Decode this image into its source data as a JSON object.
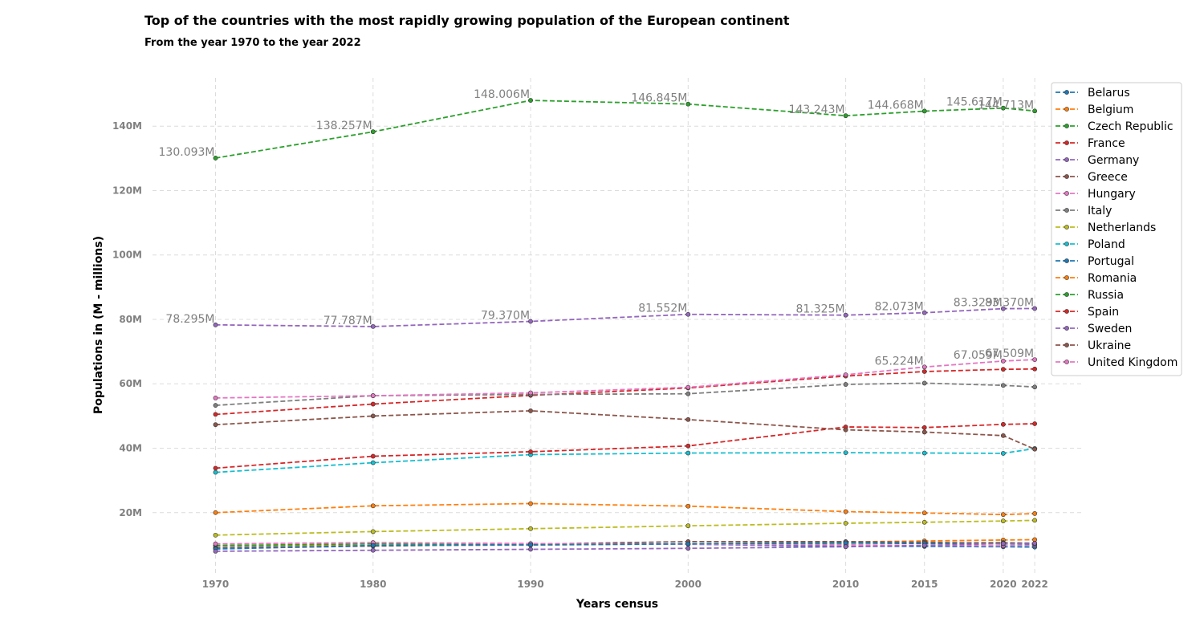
{
  "chart_data": {
    "type": "line",
    "title": "Top of the countries with the most rapidly growing population of the European continent",
    "subtitle": "From the year 1970 to the year 2022",
    "xlabel": "Years census",
    "ylabel": "Populations in (M - millions)",
    "categories": [
      "1970",
      "1980",
      "1990",
      "2000",
      "2010",
      "2015",
      "2020",
      "2022"
    ],
    "x": [
      1970,
      1980,
      1990,
      2000,
      2010,
      2015,
      2020,
      2022
    ],
    "xlim": [
      1966,
      2025
    ],
    "ylim": [
      1,
      155
    ],
    "y_ticks": [
      20,
      40,
      60,
      80,
      100,
      120,
      140
    ],
    "y_tick_labels": [
      "20M",
      "40M",
      "60M",
      "80M",
      "100M",
      "120M",
      "140M"
    ],
    "grid": true,
    "line_style": "dashed",
    "legend_position": "top-right",
    "series": [
      {
        "name": "Belarus",
        "color": "#1f77b4",
        "values": [
          9.1,
          9.7,
          10.2,
          10.2,
          9.5,
          9.5,
          9.4,
          9.3
        ]
      },
      {
        "name": "Belgium",
        "color": "#ff7f0e",
        "values": [
          9.7,
          9.8,
          9.9,
          10.3,
          10.9,
          11.2,
          11.5,
          11.6
        ]
      },
      {
        "name": "Czech Republic",
        "color": "#2ca02c",
        "values": [
          9.8,
          10.3,
          10.3,
          10.2,
          10.5,
          10.5,
          10.7,
          10.5
        ]
      },
      {
        "name": "France",
        "color": "#d62728",
        "values": [
          50.5,
          53.7,
          56.4,
          58.7,
          62.4,
          63.8,
          64.5,
          64.6
        ]
      },
      {
        "name": "Germany",
        "color": "#9467bd",
        "values": [
          78.295,
          77.787,
          79.37,
          81.552,
          81.325,
          82.073,
          83.329,
          83.37
        ]
      },
      {
        "name": "Greece",
        "color": "#8c564b",
        "values": [
          8.9,
          9.6,
          10.2,
          11.0,
          11.0,
          10.8,
          10.5,
          10.4
        ]
      },
      {
        "name": "Hungary",
        "color": "#e377c2",
        "values": [
          10.3,
          10.7,
          10.4,
          10.2,
          10.0,
          9.8,
          9.7,
          9.9
        ]
      },
      {
        "name": "Italy",
        "color": "#7f7f7f",
        "values": [
          53.3,
          56.3,
          56.7,
          56.9,
          59.8,
          60.2,
          59.5,
          59.0
        ]
      },
      {
        "name": "Netherlands",
        "color": "#bcbd22",
        "values": [
          13.0,
          14.1,
          15.0,
          15.9,
          16.7,
          17.0,
          17.4,
          17.6
        ]
      },
      {
        "name": "Poland",
        "color": "#17becf",
        "values": [
          32.5,
          35.5,
          38.0,
          38.5,
          38.6,
          38.5,
          38.4,
          39.9
        ]
      },
      {
        "name": "Portugal",
        "color": "#1f77b4",
        "values": [
          8.7,
          9.8,
          10.0,
          10.3,
          10.6,
          10.4,
          10.3,
          10.3
        ]
      },
      {
        "name": "Romania",
        "color": "#ff7f0e",
        "values": [
          20.0,
          22.1,
          22.8,
          22.0,
          20.3,
          19.9,
          19.4,
          19.7
        ]
      },
      {
        "name": "Russia",
        "color": "#2ca02c",
        "values": [
          130.093,
          138.257,
          148.006,
          146.845,
          143.243,
          144.668,
          145.617,
          144.713
        ]
      },
      {
        "name": "Spain",
        "color": "#d62728",
        "values": [
          33.8,
          37.5,
          38.9,
          40.7,
          46.6,
          46.4,
          47.4,
          47.6
        ]
      },
      {
        "name": "Sweden",
        "color": "#9467bd",
        "values": [
          8.0,
          8.3,
          8.6,
          8.9,
          9.4,
          9.8,
          10.4,
          10.5
        ]
      },
      {
        "name": "Ukraine",
        "color": "#8c564b",
        "values": [
          47.3,
          50.0,
          51.6,
          48.9,
          45.7,
          45.0,
          43.9,
          39.7
        ]
      },
      {
        "name": "United Kingdom",
        "color": "#e377c2",
        "values": [
          55.6,
          56.3,
          57.2,
          58.9,
          62.8,
          65.224,
          67.059,
          67.509
        ]
      }
    ],
    "annotations": [
      {
        "series": "Russia",
        "labels": [
          "130.093M",
          "138.257M",
          "148.006M",
          "146.845M",
          "143.243M",
          "144.668M",
          "145.617M",
          "144.713M"
        ]
      },
      {
        "series": "Germany",
        "labels": [
          "78.295M",
          "77.787M",
          "79.370M",
          "81.552M",
          "81.325M",
          "82.073M",
          "83.329M",
          "83.370M"
        ]
      },
      {
        "series": "United Kingdom",
        "labels": [
          "",
          "",
          "",
          "",
          "",
          "65.224M",
          "67.059M",
          "67.509M"
        ]
      }
    ]
  }
}
